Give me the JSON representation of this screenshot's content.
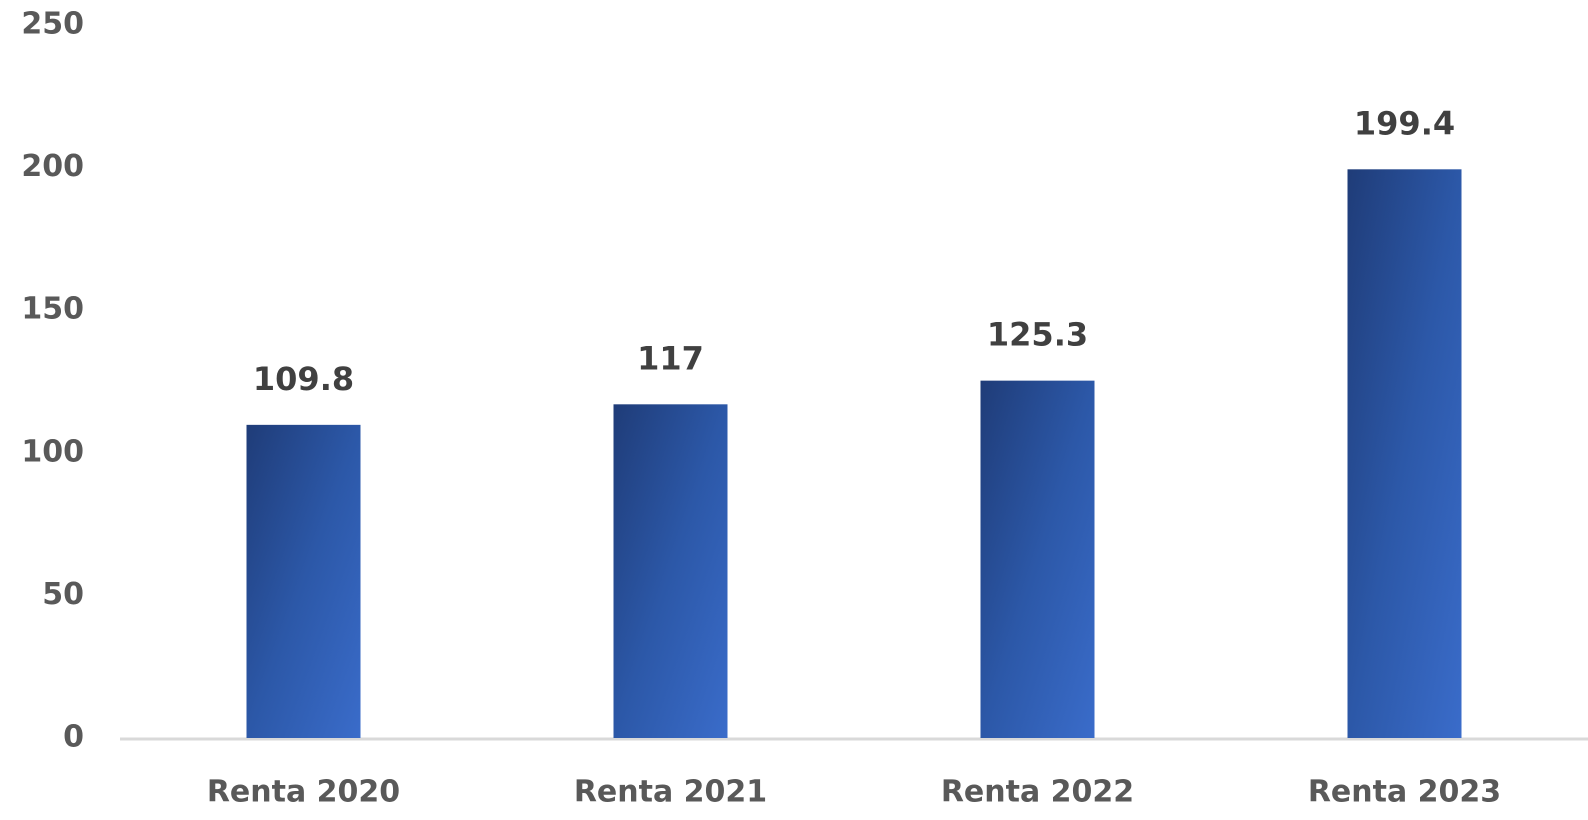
{
  "chart_data": {
    "type": "bar",
    "categories": [
      "Renta 2020",
      "Renta 2021",
      "Renta 2022",
      "Renta 2023"
    ],
    "values": [
      109.8,
      117,
      125.3,
      199.4
    ],
    "color": "#2f5aaa",
    "ylim": [
      0,
      250
    ],
    "yticks": [
      0,
      50,
      100,
      150,
      200,
      250
    ],
    "grid": false
  }
}
